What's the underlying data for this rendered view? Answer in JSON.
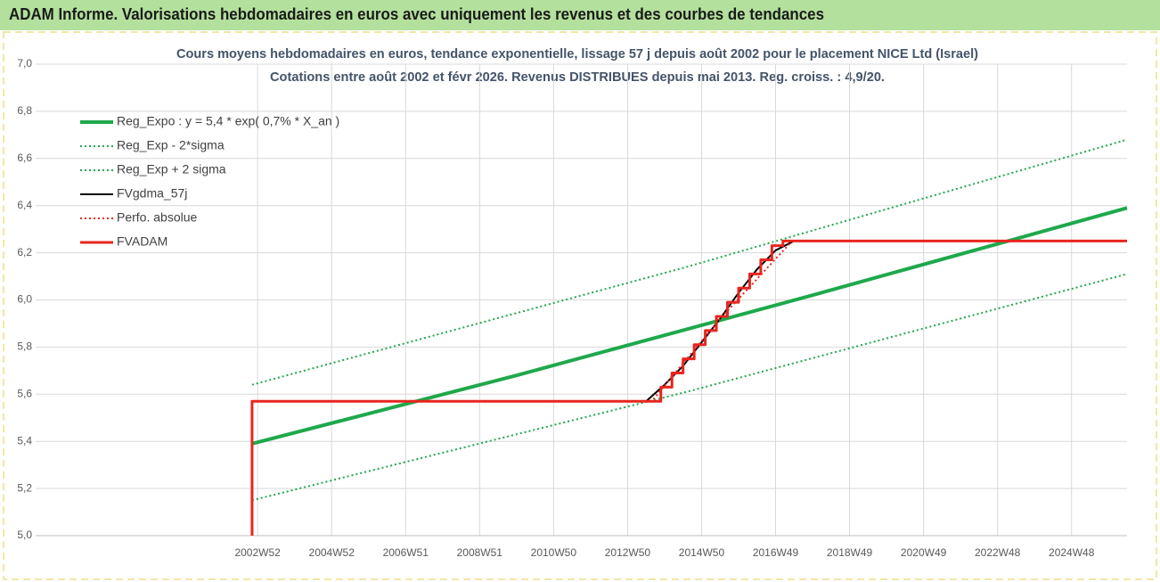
{
  "page_title": "ADAM Informe. Valorisations hebdomadaires en euros avec uniquement les revenus et des courbes de tendances",
  "chart_data": {
    "type": "line",
    "title": "Cours moyens hebdomadaires en euros, tendance exponentielle, lissage 57 j depuis août 2002 pour le placement NICE Ltd (Israel)",
    "subtitle": "Cotations entre août 2002 et févr 2026. Revenus DISTRIBUES depuis mai 2013.  Reg. croiss. : 4,9/20.",
    "xlim": [
      1997,
      2026.5
    ],
    "xticks": [
      {
        "value": 2003,
        "label": "2002W52"
      },
      {
        "value": 2005,
        "label": "2004W52"
      },
      {
        "value": 2007,
        "label": "2006W51"
      },
      {
        "value": 2009,
        "label": "2008W51"
      },
      {
        "value": 2011,
        "label": "2010W50"
      },
      {
        "value": 2013,
        "label": "2012W50"
      },
      {
        "value": 2015,
        "label": "2014W50"
      },
      {
        "value": 2017,
        "label": "2016W49"
      },
      {
        "value": 2019,
        "label": "2018W49"
      },
      {
        "value": 2021,
        "label": "2020W49"
      },
      {
        "value": 2023,
        "label": "2022W48"
      },
      {
        "value": 2025,
        "label": "2024W48"
      }
    ],
    "ylim": [
      5.0,
      7.0
    ],
    "yticks": [
      {
        "value": 5.0,
        "label": "5,0"
      },
      {
        "value": 5.2,
        "label": "5,2"
      },
      {
        "value": 5.4,
        "label": "5,4"
      },
      {
        "value": 5.6,
        "label": "5,6"
      },
      {
        "value": 5.8,
        "label": "5,8"
      },
      {
        "value": 6.0,
        "label": "6,0"
      },
      {
        "value": 6.2,
        "label": "6,2"
      },
      {
        "value": 6.4,
        "label": "6,4"
      },
      {
        "value": 6.6,
        "label": "6,6"
      },
      {
        "value": 6.8,
        "label": "6,8"
      },
      {
        "value": 7.0,
        "label": "7,0"
      }
    ],
    "grid": true,
    "legend": "upper left",
    "series": [
      {
        "name": "Reg_Expo : y = 5,4 * exp( 0,7% *  X_an )",
        "color": "#1fa84c",
        "style": "solid",
        "width": 4,
        "x": [
          2002.85,
          2010,
          2018,
          2026.5
        ],
        "values": [
          5.39,
          5.68,
          6.02,
          6.39
        ]
      },
      {
        "name": "Reg_Exp - 2*sigma",
        "color": "#1fa84c",
        "style": "dotted",
        "width": 2,
        "x": [
          2002.85,
          2014.6,
          2026.5
        ],
        "values": [
          5.15,
          5.61,
          6.11
        ]
      },
      {
        "name": "Reg_Exp + 2 sigma",
        "color": "#1fa84c",
        "style": "dotted",
        "width": 2,
        "x": [
          2002.85,
          2014.6,
          2026.5
        ],
        "values": [
          5.64,
          6.14,
          6.68
        ]
      },
      {
        "name": "FVgdma_57j",
        "color": "#000000",
        "style": "solid",
        "width": 2,
        "x": [
          2013.0,
          2013.5,
          2014,
          2014.5,
          2015,
          2015.5,
          2016,
          2016.5,
          2017,
          2017.5,
          2017.8
        ],
        "values": [
          5.57,
          5.57,
          5.64,
          5.72,
          5.82,
          5.92,
          6.03,
          6.13,
          6.21,
          6.25,
          6.25
        ]
      },
      {
        "name": "Perfo. absolue",
        "color": "#e8251f",
        "style": "dotted",
        "width": 2,
        "x": [
          2013.0,
          2013.65,
          2015.5,
          2017.45
        ],
        "values": [
          5.57,
          5.57,
          5.92,
          6.25
        ]
      },
      {
        "name": "FVADAM",
        "color": "#e8251f",
        "style": "solid",
        "width": 3,
        "x": [
          2002.85,
          2002.85,
          2013.65,
          2013.9,
          2013.9,
          2014.2,
          2014.2,
          2014.5,
          2014.5,
          2014.8,
          2014.8,
          2015.1,
          2015.1,
          2015.4,
          2015.4,
          2015.7,
          2015.7,
          2016.0,
          2016.0,
          2016.3,
          2016.3,
          2016.6,
          2016.6,
          2016.9,
          2016.9,
          2017.2,
          2017.2,
          2017.45,
          2026.5
        ],
        "values": [
          5.0,
          5.57,
          5.57,
          5.57,
          5.63,
          5.63,
          5.69,
          5.69,
          5.75,
          5.75,
          5.81,
          5.81,
          5.87,
          5.87,
          5.93,
          5.93,
          5.99,
          5.99,
          6.05,
          6.05,
          6.11,
          6.11,
          6.17,
          6.17,
          6.23,
          6.23,
          6.25,
          6.25,
          6.25
        ]
      }
    ]
  }
}
